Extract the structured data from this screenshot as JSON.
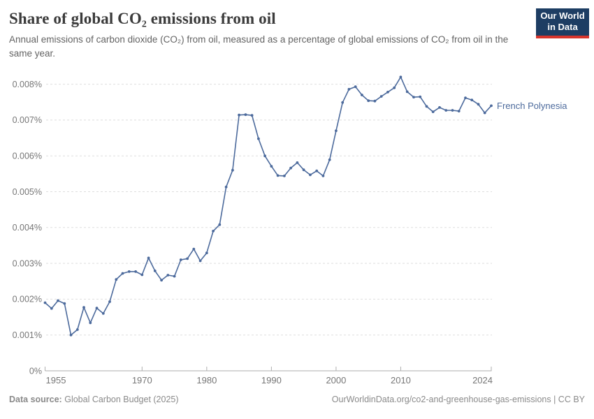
{
  "header": {
    "title": "Share of global CO₂ emissions from oil",
    "subtitle": "Annual emissions of carbon dioxide (CO₂) from oil, measured as a percentage of global emissions of CO₂ from oil in the same year.",
    "logo_line1": "Our World",
    "logo_line2": "in Data",
    "logo_bg": "#1d3d63",
    "logo_red": "#d7352c"
  },
  "chart_data": {
    "type": "line",
    "title": "Share of global CO₂ emissions from oil",
    "entity_label": "French Polynesia",
    "unit": "%",
    "line_color": "#4C6A9C",
    "grid": true,
    "legend_position": "end-of-line",
    "ylim": [
      0,
      0.0085
    ],
    "y_ticks": [
      {
        "value": 0,
        "label": "0%"
      },
      {
        "value": 0.001,
        "label": "0.001%"
      },
      {
        "value": 0.002,
        "label": "0.002%"
      },
      {
        "value": 0.003,
        "label": "0.003%"
      },
      {
        "value": 0.004,
        "label": "0.004%"
      },
      {
        "value": 0.005,
        "label": "0.005%"
      },
      {
        "value": 0.006,
        "label": "0.006%"
      },
      {
        "value": 0.007,
        "label": "0.007%"
      },
      {
        "value": 0.008,
        "label": "0.008%"
      }
    ],
    "x_ticks": [
      1955,
      1970,
      1980,
      1990,
      2000,
      2010,
      2024
    ],
    "x": [
      1955,
      1956,
      1957,
      1958,
      1959,
      1960,
      1961,
      1962,
      1963,
      1964,
      1965,
      1966,
      1967,
      1968,
      1969,
      1970,
      1971,
      1972,
      1973,
      1974,
      1975,
      1976,
      1977,
      1978,
      1979,
      1980,
      1981,
      1982,
      1983,
      1984,
      1985,
      1986,
      1987,
      1988,
      1989,
      1990,
      1991,
      1992,
      1993,
      1994,
      1995,
      1996,
      1997,
      1998,
      1999,
      2000,
      2001,
      2002,
      2003,
      2004,
      2005,
      2006,
      2007,
      2008,
      2009,
      2010,
      2011,
      2012,
      2013,
      2014,
      2015,
      2016,
      2017,
      2018,
      2019,
      2020,
      2021,
      2022,
      2023,
      2024
    ],
    "values": [
      0.0019,
      0.00174,
      0.00196,
      0.00188,
      0.001,
      0.00115,
      0.00177,
      0.00134,
      0.00175,
      0.0016,
      0.00193,
      0.00255,
      0.00272,
      0.00277,
      0.00277,
      0.00268,
      0.00315,
      0.00279,
      0.00253,
      0.00267,
      0.00264,
      0.0031,
      0.00313,
      0.0034,
      0.00307,
      0.00329,
      0.0039,
      0.00408,
      0.00513,
      0.0056,
      0.00714,
      0.00715,
      0.00713,
      0.00648,
      0.006,
      0.00571,
      0.00545,
      0.00544,
      0.00566,
      0.00581,
      0.00561,
      0.00547,
      0.00558,
      0.00544,
      0.00589,
      0.0067,
      0.00749,
      0.00786,
      0.00793,
      0.0077,
      0.00754,
      0.00753,
      0.00766,
      0.00778,
      0.0079,
      0.0082,
      0.00779,
      0.00764,
      0.00765,
      0.00738,
      0.00723,
      0.00735,
      0.00727,
      0.00727,
      0.00725,
      0.00762,
      0.00756,
      0.00744,
      0.0072,
      0.0074
    ]
  },
  "footer": {
    "source_label": "Data source:",
    "source_value": "Global Carbon Budget (2025)",
    "link": "OurWorldinData.org/co2-and-greenhouse-gas-emissions | CC BY"
  }
}
